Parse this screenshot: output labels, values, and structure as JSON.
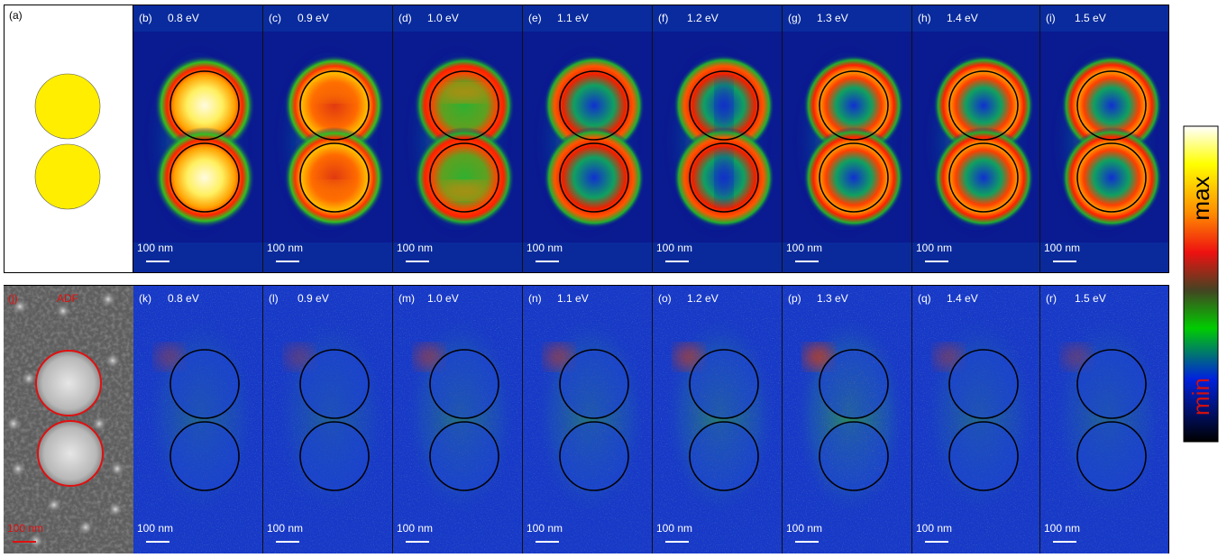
{
  "figure": {
    "top_row": {
      "schematic_label": "(a)",
      "panels": [
        {
          "label": "(b)",
          "energy": "0.8 eV",
          "pattern": "dipole-filled",
          "scale_label": "100 nm"
        },
        {
          "label": "(c)",
          "energy": "0.9 eV",
          "pattern": "dipole-banded",
          "scale_label": "100 nm"
        },
        {
          "label": "(d)",
          "energy": "1.0 eV",
          "pattern": "quad-banded",
          "scale_label": "100 nm"
        },
        {
          "label": "(e)",
          "energy": "1.1 eV",
          "pattern": "ring-vertical",
          "scale_label": "100 nm"
        },
        {
          "label": "(f)",
          "energy": "1.2 eV",
          "pattern": "ring-vertical-strong",
          "scale_label": "100 nm"
        },
        {
          "label": "(g)",
          "energy": "1.3 eV",
          "pattern": "ring-full",
          "scale_label": "100 nm"
        },
        {
          "label": "(h)",
          "energy": "1.4 eV",
          "pattern": "ring-full",
          "scale_label": "100 nm"
        },
        {
          "label": "(i)",
          "energy": "1.5 eV",
          "pattern": "ring-full",
          "scale_label": "100 nm"
        }
      ]
    },
    "bottom_row": {
      "adf": {
        "label": "(j)",
        "title": "ADF",
        "scale_label": "100 nm"
      },
      "panels": [
        {
          "label": "(k)",
          "energy": "0.8 eV",
          "intensity": 0.25,
          "scale_label": "100 nm"
        },
        {
          "label": "(l)",
          "energy": "0.9 eV",
          "intensity": 0.15,
          "scale_label": "100 nm"
        },
        {
          "label": "(m)",
          "energy": "1.0 eV",
          "intensity": 0.45,
          "scale_label": "100 nm"
        },
        {
          "label": "(n)",
          "energy": "1.1 eV",
          "intensity": 0.5,
          "scale_label": "100 nm"
        },
        {
          "label": "(o)",
          "energy": "1.2 eV",
          "intensity": 0.65,
          "scale_label": "100 nm"
        },
        {
          "label": "(p)",
          "energy": "1.3 eV",
          "intensity": 0.9,
          "scale_label": "100 nm"
        },
        {
          "label": "(q)",
          "energy": "1.4 eV",
          "intensity": 0.3,
          "scale_label": "100 nm"
        },
        {
          "label": "(r)",
          "energy": "1.5 eV",
          "intensity": 0.2,
          "scale_label": "100 nm"
        }
      ]
    },
    "colorbar": {
      "max_label": "max",
      "min_label": "min"
    },
    "colors": {
      "particle_fill": "#ffee00",
      "map_background": "#0a1a90",
      "adf_circle": "#e01010",
      "adf_text": "#e01010",
      "label_text": "#ffffff",
      "max_text": "#000000",
      "min_text": "#d01010"
    }
  }
}
